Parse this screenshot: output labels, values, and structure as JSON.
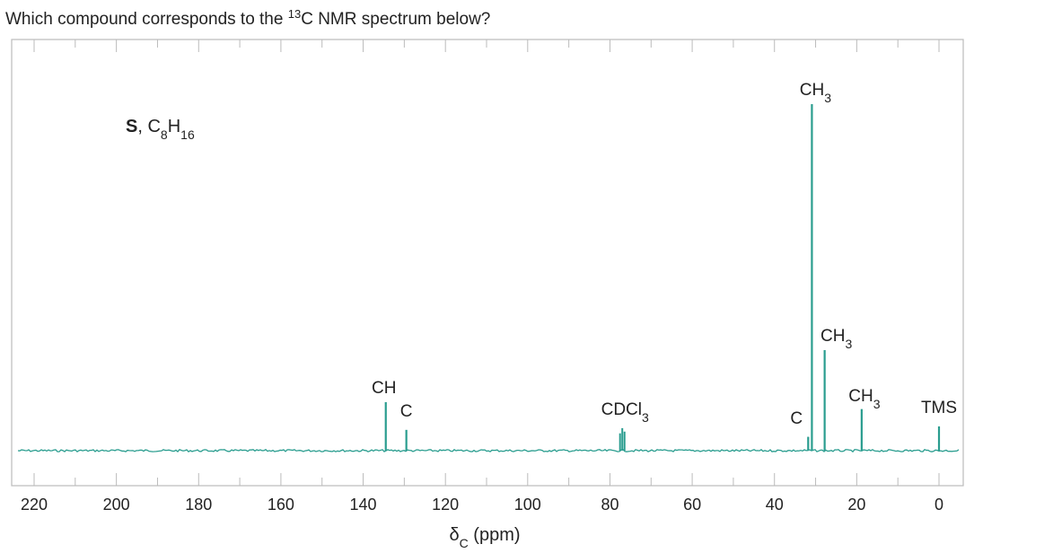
{
  "question": {
    "prefix": "Which compound corresponds to the ",
    "superscript": "13",
    "suffix": "C NMR spectrum below?"
  },
  "chart_data": {
    "type": "line",
    "title": "S, C8H16",
    "xlabel": "δC (ppm)",
    "xlim": [
      220,
      0
    ],
    "x_reversed": true,
    "x_ticks": [
      220,
      200,
      180,
      160,
      140,
      120,
      100,
      80,
      60,
      40,
      20,
      0
    ],
    "peaks": [
      {
        "ppm": 134.5,
        "height": 0.14,
        "label": "CH",
        "group": "CH"
      },
      {
        "ppm": 129.5,
        "height": 0.06,
        "label": "C",
        "group": "C"
      },
      {
        "ppm": 77.0,
        "height": 0.06,
        "label": "CDCl3",
        "group": "CDCl3"
      },
      {
        "ppm": 31.8,
        "height": 0.04,
        "label": "C",
        "group": "C"
      },
      {
        "ppm": 30.9,
        "height": 1.0,
        "label": "CH3",
        "group": "CH3"
      },
      {
        "ppm": 27.8,
        "height": 0.29,
        "label": "CH3",
        "group": "CH3"
      },
      {
        "ppm": 18.8,
        "height": 0.12,
        "label": "CH3",
        "group": "CH3"
      },
      {
        "ppm": 0.0,
        "height": 0.07,
        "label": "TMS",
        "group": "TMS"
      }
    ],
    "colors": {
      "trace": "#2a9d8f",
      "frame": "#bbbbbb",
      "tms_label": "#666666"
    }
  }
}
